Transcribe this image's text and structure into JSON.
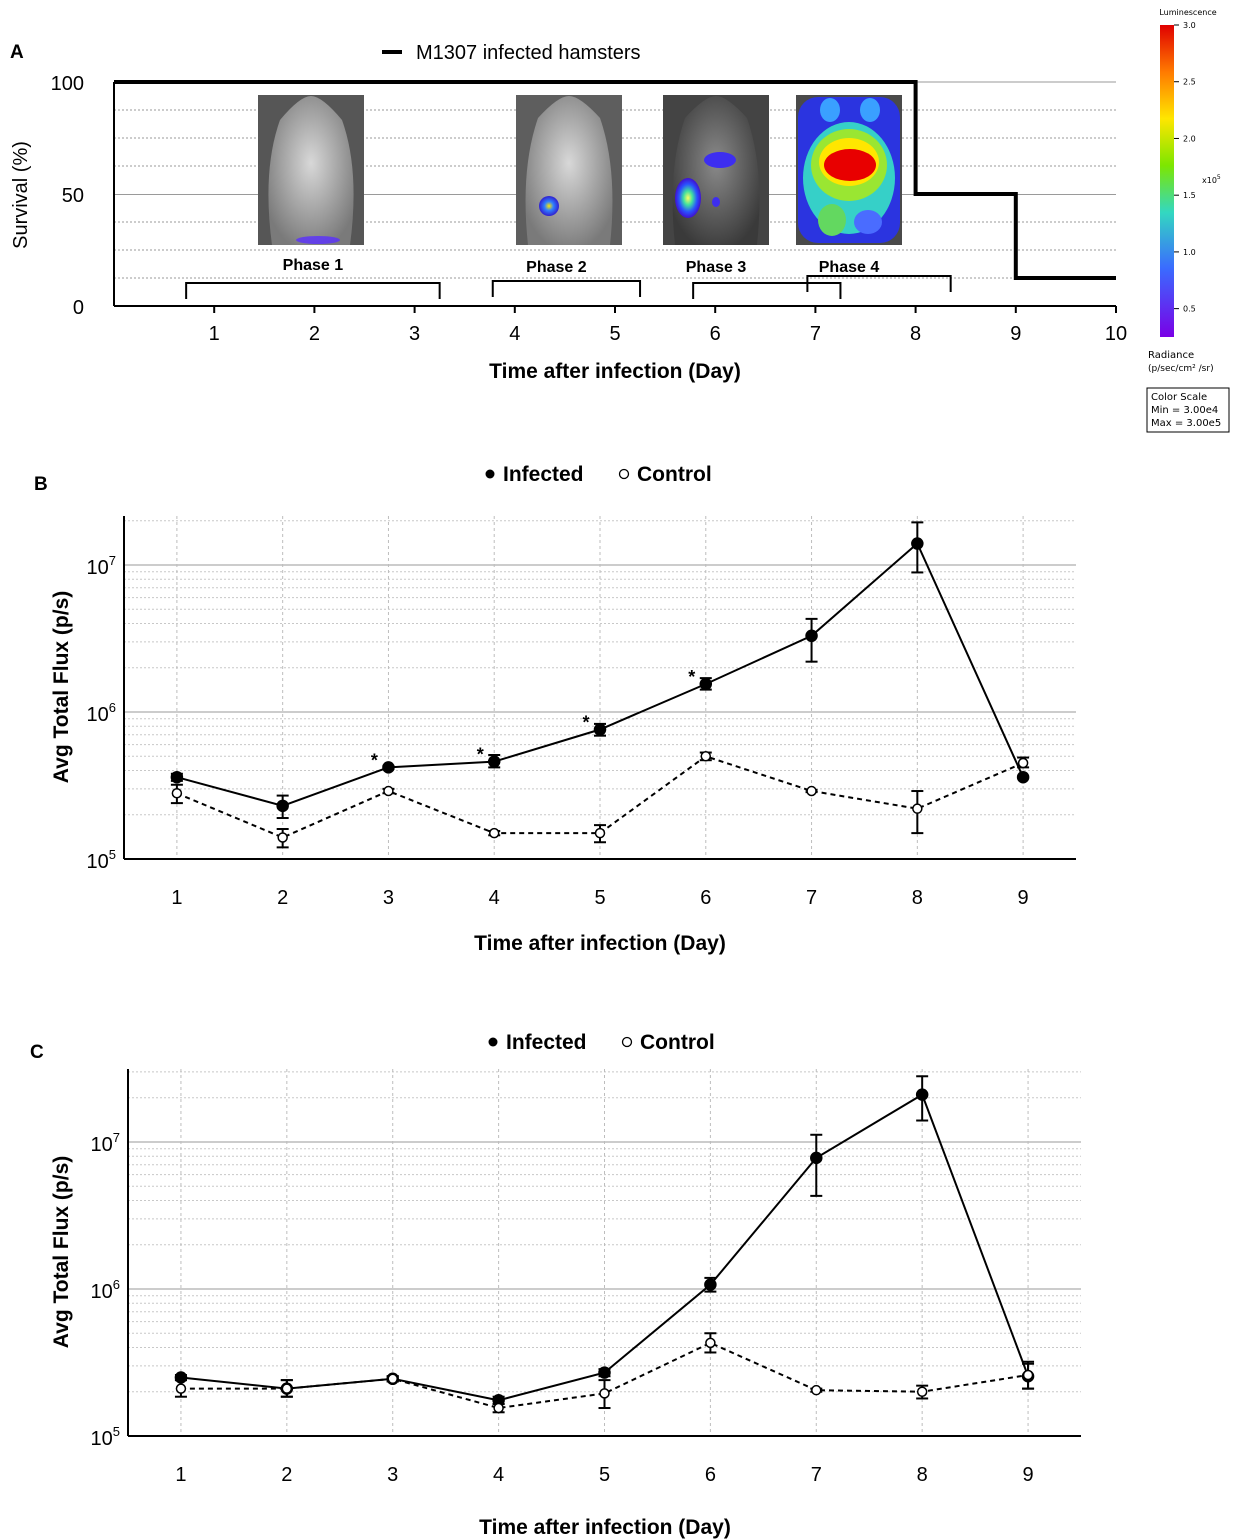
{
  "chart_data": [
    {
      "panel_label": "A",
      "type": "line",
      "step": true,
      "legend": {
        "entries": [
          "M1307 infected hamsters"
        ],
        "placement": "top-center"
      },
      "xlabel": "Time after infection (Day)",
      "ylabel": "Survival (%)",
      "xlim": [
        0,
        10
      ],
      "ylim": [
        0,
        100
      ],
      "x_ticks": [
        "1",
        "2",
        "3",
        "4",
        "5",
        "6",
        "7",
        "8",
        "9",
        "10"
      ],
      "y_ticks": [
        "0",
        "50",
        "100"
      ],
      "grid": true,
      "series": [
        {
          "name": "M1307 infected hamsters",
          "x": [
            0,
            8,
            8,
            9,
            9,
            10
          ],
          "y": [
            100,
            100,
            50,
            50,
            12.5,
            12.5
          ]
        }
      ],
      "phases": [
        {
          "label": "Phase 1",
          "start": 0.72,
          "end": 3.25
        },
        {
          "label": "Phase 2",
          "start": 3.78,
          "end": 5.25
        },
        {
          "label": "Phase 3",
          "start": 5.78,
          "end": 7.25
        },
        {
          "label": "Phase 4",
          "start": 6.92,
          "end": 8.35
        }
      ],
      "color_scale": {
        "title": "Luminescence",
        "ticks": [
          "3.0",
          "2.5",
          "2.0",
          "1.5",
          "1.0",
          "0.5"
        ],
        "multiplier": "x10",
        "multiplier_exp": "5",
        "radiance_label": "Radiance",
        "radiance_units": "(p/sec/cm² /sr)",
        "box_title": "Color Scale",
        "box_min": "Min = 3.00e4",
        "box_max": "Max = 3.00e5"
      }
    },
    {
      "panel_label": "B",
      "type": "line",
      "xlabel": "Time after infection (Day)",
      "ylabel": "Avg Total Flux (p/s)",
      "yscale": "log",
      "xlim": [
        0.5,
        9.5
      ],
      "ylim": [
        100000,
        22000000
      ],
      "grid": true,
      "legend": {
        "placement": "top-center"
      },
      "x": [
        1,
        2,
        3,
        4,
        5,
        6,
        7,
        8,
        9
      ],
      "series": [
        {
          "name": "Infected",
          "marker": "filled-circle",
          "line": "solid",
          "values": [
            360000,
            230000,
            420000,
            460000,
            760000,
            1550000,
            3300000,
            14000000,
            360000
          ],
          "err_low": [
            340000,
            190000,
            410000,
            420000,
            690000,
            1420000,
            2200000,
            8900000,
            360000
          ],
          "err_high": [
            380000,
            270000,
            430000,
            510000,
            830000,
            1700000,
            4300000,
            19500000,
            360000
          ]
        },
        {
          "name": "Control",
          "marker": "open-circle",
          "line": "dashed",
          "values": [
            280000,
            140000,
            290000,
            150000,
            150000,
            500000,
            290000,
            220000,
            450000
          ],
          "err_low": [
            240000,
            120000,
            280000,
            145000,
            130000,
            470000,
            285000,
            150000,
            420000
          ],
          "err_high": [
            320000,
            160000,
            300000,
            155000,
            170000,
            530000,
            295000,
            290000,
            490000
          ]
        }
      ],
      "significance_marker": "*",
      "significant_x": [
        3,
        4,
        5,
        6
      ],
      "x_ticks": [
        "1",
        "2",
        "3",
        "4",
        "5",
        "6",
        "7",
        "8",
        "9"
      ],
      "y_ticks": [
        {
          "base": "10",
          "exp": "5"
        },
        {
          "base": "10",
          "exp": "6"
        },
        {
          "base": "10",
          "exp": "7"
        }
      ]
    },
    {
      "panel_label": "C",
      "type": "line",
      "xlabel": "Time after infection (Day)",
      "ylabel": "Avg Total Flux (p/s)",
      "yscale": "log",
      "xlim": [
        0.5,
        9.5
      ],
      "ylim": [
        100000,
        32000000
      ],
      "grid": true,
      "legend": {
        "placement": "top-center"
      },
      "x": [
        1,
        2,
        3,
        4,
        5,
        6,
        7,
        8,
        9
      ],
      "series": [
        {
          "name": "Infected",
          "marker": "filled-circle",
          "line": "solid",
          "values": [
            250000,
            210000,
            245000,
            175000,
            270000,
            1070000,
            7800000,
            21000000,
            255000
          ],
          "err_low": [
            240000,
            185000,
            235000,
            165000,
            255000,
            960000,
            4300000,
            14000000,
            210000
          ],
          "err_high": [
            260000,
            240000,
            255000,
            185000,
            285000,
            1190000,
            11200000,
            28000000,
            310000
          ]
        },
        {
          "name": "Control",
          "marker": "open-circle",
          "line": "dashed",
          "values": [
            210000,
            210000,
            245000,
            155000,
            195000,
            430000,
            205000,
            200000,
            260000
          ],
          "err_low": [
            185000,
            185000,
            235000,
            145000,
            155000,
            370000,
            200000,
            180000,
            210000
          ],
          "err_high": [
            240000,
            240000,
            255000,
            165000,
            240000,
            500000,
            210000,
            220000,
            320000
          ]
        }
      ],
      "x_ticks": [
        "1",
        "2",
        "3",
        "4",
        "5",
        "6",
        "7",
        "8",
        "9"
      ],
      "y_ticks": [
        {
          "base": "10",
          "exp": "5"
        },
        {
          "base": "10",
          "exp": "6"
        },
        {
          "base": "10",
          "exp": "7"
        }
      ]
    }
  ]
}
